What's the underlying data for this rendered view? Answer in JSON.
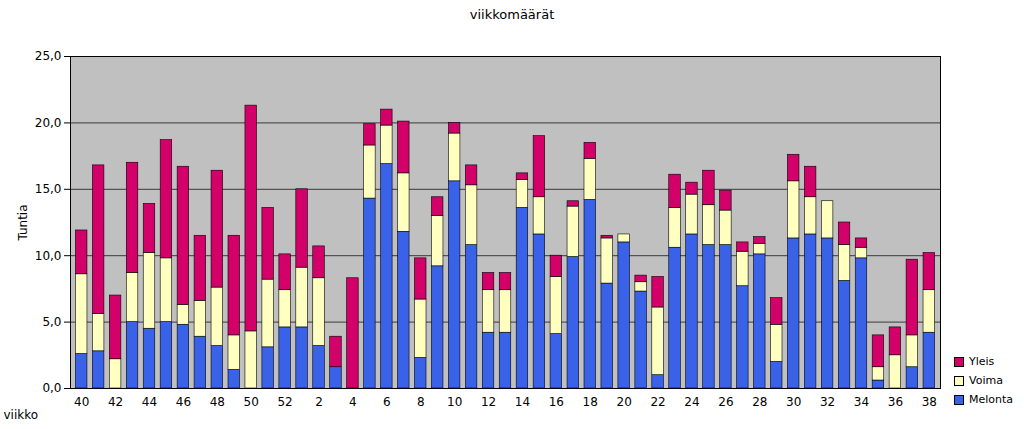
{
  "chart_data": {
    "type": "bar",
    "stacked": true,
    "title": "viikkomäärät",
    "x_label": "viikko",
    "y_label": "Tuntia",
    "categories": [
      40,
      null,
      42,
      null,
      44,
      null,
      46,
      null,
      48,
      null,
      50,
      null,
      52,
      null,
      2,
      null,
      4,
      null,
      6,
      null,
      8,
      null,
      10,
      null,
      12,
      null,
      14,
      null,
      16,
      null,
      18,
      null,
      20,
      null,
      22,
      null,
      24,
      null,
      26,
      null,
      28,
      null,
      30,
      null,
      32,
      null,
      34,
      null,
      36,
      null,
      38
    ],
    "series": [
      {
        "name": "Melonta",
        "color": "#3a62e8",
        "values": [
          2.6,
          2.8,
          0,
          5.0,
          4.5,
          5.0,
          4.8,
          3.9,
          3.2,
          1.4,
          0,
          3.1,
          4.6,
          4.6,
          3.2,
          1.6,
          0,
          14.3,
          16.9,
          11.8,
          2.3,
          9.2,
          15.6,
          10.8,
          4.2,
          4.2,
          13.6,
          11.6,
          4.1,
          9.9,
          14.2,
          7.9,
          11.0,
          7.3,
          1.0,
          10.6,
          11.6,
          10.8,
          10.8,
          7.7,
          10.1,
          2.0,
          11.3,
          11.6,
          11.3,
          8.1,
          9.8,
          0.6,
          0,
          1.6,
          4.2
        ]
      },
      {
        "name": "Voima",
        "color": "#ffffc0",
        "values": [
          6.0,
          2.8,
          2.2,
          3.7,
          5.7,
          4.8,
          1.5,
          2.7,
          4.4,
          2.6,
          4.3,
          5.1,
          2.8,
          4.5,
          5.1,
          0,
          0,
          4.0,
          2.9,
          4.4,
          4.4,
          3.8,
          3.6,
          4.5,
          3.2,
          3.2,
          2.1,
          2.8,
          4.3,
          3.8,
          3.1,
          3.4,
          0.6,
          0.7,
          5.1,
          3.0,
          3.0,
          3.0,
          2.6,
          2.6,
          0.8,
          2.8,
          4.3,
          2.8,
          2.8,
          2.7,
          0.8,
          1.0,
          2.5,
          2.4,
          3.2
        ]
      },
      {
        "name": "Yleis",
        "color": "#d4006a",
        "values": [
          3.3,
          11.2,
          4.8,
          8.3,
          3.7,
          8.9,
          10.4,
          4.9,
          8.8,
          7.5,
          17.0,
          5.4,
          2.7,
          5.9,
          2.4,
          2.3,
          8.3,
          1.6,
          1.2,
          3.9,
          3.1,
          1.4,
          0.8,
          1.5,
          1.3,
          1.3,
          0.5,
          4.6,
          1.6,
          0.4,
          1.2,
          0.2,
          0,
          0.5,
          2.3,
          2.5,
          0.9,
          2.6,
          1.5,
          0.7,
          0.5,
          2.0,
          2.0,
          2.3,
          0,
          1.7,
          0.7,
          2.4,
          2.1,
          5.7,
          2.8
        ]
      }
    ],
    "ylim": [
      0,
      25
    ],
    "yticks": [
      {
        "value": 0,
        "label": "0,0"
      },
      {
        "value": 5,
        "label": "5,0"
      },
      {
        "value": 10,
        "label": "10,0"
      },
      {
        "value": 15,
        "label": "15,0"
      },
      {
        "value": 20,
        "label": "20,0"
      },
      {
        "value": 25,
        "label": "25,0"
      }
    ],
    "grid": true,
    "legend": "right"
  }
}
